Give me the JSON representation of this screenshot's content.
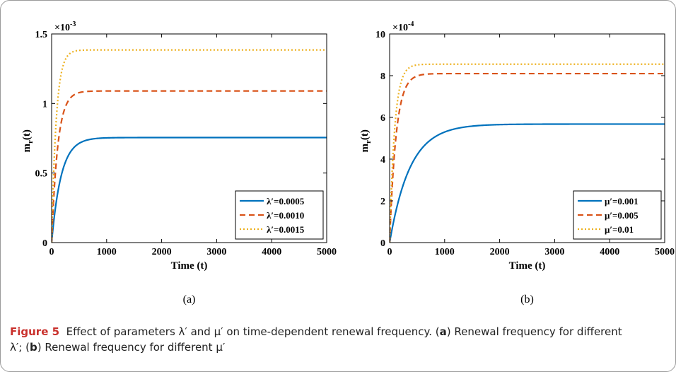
{
  "colors": {
    "blue": "#0072BD",
    "orange": "#D95319",
    "yellow": "#EDB120",
    "caption_accent": "#c9302c"
  },
  "chart_data": [
    {
      "type": "line",
      "sublabel": "(a)",
      "xlabel": "Time (t)",
      "ylabel_main": "m",
      "ylabel_sub": "r",
      "ylabel_tail": "(t)",
      "exponent_base": "×10",
      "exponent": "-3",
      "xlim": [
        0,
        5000
      ],
      "ylim": [
        0,
        1.5
      ],
      "xticks": [
        0,
        1000,
        2000,
        3000,
        4000,
        5000
      ],
      "xtick_labels": [
        "0",
        "1000",
        "2000",
        "3000",
        "4000",
        "5000"
      ],
      "yticks": [
        0,
        0.5,
        1,
        1.5
      ],
      "ytick_labels": [
        "0",
        "0.5",
        "1",
        "1.5"
      ],
      "legend_position": "bottom-right",
      "series": [
        {
          "name": "λ′=0.0005",
          "color": "#0072BD",
          "dash": "solid",
          "plateau": 0.755,
          "rate": 0.0058,
          "x": [
            0,
            100,
            200,
            400,
            600,
            1000,
            2000,
            5000
          ],
          "values": [
            0,
            0.33,
            0.52,
            0.68,
            0.73,
            0.752,
            0.755,
            0.755
          ]
        },
        {
          "name": "λ′=0.0010",
          "color": "#D95319",
          "dash": "dashed",
          "plateau": 1.09,
          "rate": 0.009,
          "x": [
            0,
            100,
            200,
            400,
            600,
            1000,
            2000,
            5000
          ],
          "values": [
            0,
            0.65,
            0.91,
            1.06,
            1.085,
            1.09,
            1.09,
            1.09
          ]
        },
        {
          "name": "λ′=0.0015",
          "color": "#EDB120",
          "dash": "dotted",
          "plateau": 1.385,
          "rate": 0.012,
          "x": [
            0,
            100,
            200,
            400,
            600,
            1000,
            2000,
            5000
          ],
          "values": [
            0,
            0.97,
            1.27,
            1.374,
            1.384,
            1.385,
            1.385,
            1.385
          ]
        }
      ]
    },
    {
      "type": "line",
      "sublabel": "(b)",
      "xlabel": "Time (t)",
      "ylabel_main": "m",
      "ylabel_sub": "r",
      "ylabel_tail": "(t)",
      "exponent_base": "×10",
      "exponent": "-4",
      "xlim": [
        0,
        5000
      ],
      "ylim": [
        0,
        10
      ],
      "xticks": [
        0,
        1000,
        2000,
        3000,
        4000,
        5000
      ],
      "xtick_labels": [
        "0",
        "1000",
        "2000",
        "3000",
        "4000",
        "5000"
      ],
      "yticks": [
        0,
        2,
        4,
        6,
        8,
        10
      ],
      "ytick_labels": [
        "0",
        "2",
        "4",
        "6",
        "8",
        "10"
      ],
      "legend_position": "bottom-right",
      "series": [
        {
          "name": "μ′=0.001",
          "color": "#0072BD",
          "dash": "solid",
          "plateau": 5.68,
          "rate": 0.0027,
          "x": [
            0,
            200,
            500,
            1000,
            2000,
            3000,
            5000
          ],
          "values": [
            0,
            2.4,
            4.1,
            5.2,
            5.6,
            5.66,
            5.68
          ]
        },
        {
          "name": "μ′=0.005",
          "color": "#D95319",
          "dash": "dashed",
          "plateau": 8.1,
          "rate": 0.0085,
          "x": [
            0,
            100,
            200,
            400,
            700,
            1000,
            2000,
            5000
          ],
          "values": [
            0,
            4.4,
            6.5,
            7.8,
            8.07,
            8.1,
            8.1,
            8.1
          ]
        },
        {
          "name": "μ′=0.01",
          "color": "#EDB120",
          "dash": "dotted",
          "plateau": 8.55,
          "rate": 0.011,
          "x": [
            0,
            100,
            200,
            400,
            700,
            1000,
            2000,
            5000
          ],
          "values": [
            0,
            5.7,
            7.6,
            8.45,
            8.54,
            8.55,
            8.55,
            8.55
          ]
        }
      ]
    }
  ],
  "caption": {
    "figure_label": "Figure 5",
    "text_1": "Effect of parameters ",
    "sym_lambda": "λ′",
    "text_2": " and ",
    "sym_mu": "μ′",
    "text_3": " on time-dependent renewal frequency. (",
    "part_a": "a",
    "text_4": ") Renewal frequency for different ",
    "text_5": "; (",
    "part_b": "b",
    "text_6": ") Renewal frequency for different "
  }
}
